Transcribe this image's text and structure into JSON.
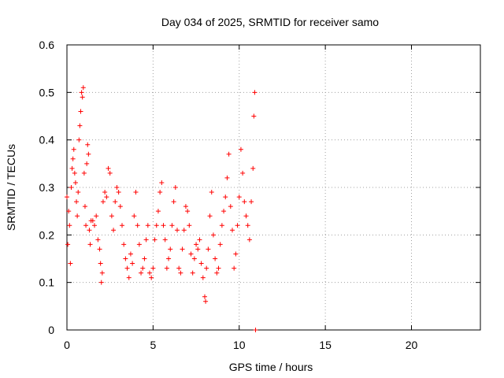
{
  "chart_data": {
    "type": "scatter",
    "title": "Day 034 of 2025, SRMTID for receiver samo",
    "xlabel": "GPS time / hours",
    "ylabel": "SRMTID / TECUs",
    "xlim": [
      0,
      24
    ],
    "ylim": [
      0,
      0.6
    ],
    "xticks": [
      0,
      5,
      10,
      15,
      20
    ],
    "yticks": [
      0,
      0.1,
      0.2,
      0.3,
      0.4,
      0.5,
      0.6
    ],
    "grid": true,
    "marker": "+",
    "series": [
      {
        "name": "SRMTID",
        "color": "#ff0000",
        "points": [
          [
            0.0,
            0.28
          ],
          [
            0.05,
            0.18
          ],
          [
            0.1,
            0.25
          ],
          [
            0.15,
            0.22
          ],
          [
            0.2,
            0.14
          ],
          [
            0.25,
            0.3
          ],
          [
            0.3,
            0.34
          ],
          [
            0.35,
            0.36
          ],
          [
            0.4,
            0.38
          ],
          [
            0.45,
            0.33
          ],
          [
            0.5,
            0.31
          ],
          [
            0.55,
            0.27
          ],
          [
            0.6,
            0.24
          ],
          [
            0.65,
            0.29
          ],
          [
            0.7,
            0.4
          ],
          [
            0.75,
            0.43
          ],
          [
            0.8,
            0.46
          ],
          [
            0.85,
            0.5
          ],
          [
            0.9,
            0.49
          ],
          [
            0.95,
            0.51
          ],
          [
            1.0,
            0.33
          ],
          [
            1.05,
            0.26
          ],
          [
            1.1,
            0.22
          ],
          [
            1.15,
            0.35
          ],
          [
            1.2,
            0.39
          ],
          [
            1.25,
            0.37
          ],
          [
            1.3,
            0.21
          ],
          [
            1.35,
            0.18
          ],
          [
            1.4,
            0.23
          ],
          [
            1.5,
            0.23
          ],
          [
            1.6,
            0.22
          ],
          [
            1.7,
            0.24
          ],
          [
            1.8,
            0.19
          ],
          [
            1.9,
            0.17
          ],
          [
            1.95,
            0.14
          ],
          [
            2.0,
            0.1
          ],
          [
            2.05,
            0.12
          ],
          [
            2.1,
            0.27
          ],
          [
            2.2,
            0.29
          ],
          [
            2.3,
            0.28
          ],
          [
            2.4,
            0.34
          ],
          [
            2.5,
            0.33
          ],
          [
            2.6,
            0.24
          ],
          [
            2.7,
            0.21
          ],
          [
            2.8,
            0.27
          ],
          [
            2.9,
            0.3
          ],
          [
            3.0,
            0.29
          ],
          [
            3.1,
            0.26
          ],
          [
            3.2,
            0.22
          ],
          [
            3.3,
            0.18
          ],
          [
            3.4,
            0.15
          ],
          [
            3.5,
            0.13
          ],
          [
            3.6,
            0.11
          ],
          [
            3.7,
            0.16
          ],
          [
            3.8,
            0.14
          ],
          [
            3.9,
            0.24
          ],
          [
            4.0,
            0.29
          ],
          [
            4.1,
            0.22
          ],
          [
            4.2,
            0.18
          ],
          [
            4.3,
            0.12
          ],
          [
            4.4,
            0.13
          ],
          [
            4.5,
            0.15
          ],
          [
            4.6,
            0.19
          ],
          [
            4.7,
            0.22
          ],
          [
            4.8,
            0.12
          ],
          [
            4.9,
            0.11
          ],
          [
            5.0,
            0.13
          ],
          [
            5.1,
            0.19
          ],
          [
            5.2,
            0.22
          ],
          [
            5.3,
            0.25
          ],
          [
            5.4,
            0.29
          ],
          [
            5.5,
            0.31
          ],
          [
            5.6,
            0.22
          ],
          [
            5.7,
            0.19
          ],
          [
            5.8,
            0.13
          ],
          [
            5.9,
            0.15
          ],
          [
            6.0,
            0.17
          ],
          [
            6.1,
            0.22
          ],
          [
            6.2,
            0.27
          ],
          [
            6.3,
            0.3
          ],
          [
            6.4,
            0.21
          ],
          [
            6.5,
            0.13
          ],
          [
            6.6,
            0.12
          ],
          [
            6.7,
            0.17
          ],
          [
            6.8,
            0.21
          ],
          [
            6.9,
            0.26
          ],
          [
            7.0,
            0.25
          ],
          [
            7.1,
            0.22
          ],
          [
            7.2,
            0.16
          ],
          [
            7.3,
            0.12
          ],
          [
            7.4,
            0.15
          ],
          [
            7.5,
            0.18
          ],
          [
            7.6,
            0.17
          ],
          [
            7.7,
            0.19
          ],
          [
            7.8,
            0.14
          ],
          [
            7.9,
            0.11
          ],
          [
            8.0,
            0.07
          ],
          [
            8.05,
            0.06
          ],
          [
            8.1,
            0.13
          ],
          [
            8.2,
            0.17
          ],
          [
            8.3,
            0.24
          ],
          [
            8.4,
            0.29
          ],
          [
            8.5,
            0.2
          ],
          [
            8.6,
            0.15
          ],
          [
            8.7,
            0.12
          ],
          [
            8.8,
            0.13
          ],
          [
            8.9,
            0.18
          ],
          [
            9.0,
            0.22
          ],
          [
            9.1,
            0.25
          ],
          [
            9.2,
            0.28
          ],
          [
            9.3,
            0.32
          ],
          [
            9.4,
            0.37
          ],
          [
            9.5,
            0.26
          ],
          [
            9.6,
            0.21
          ],
          [
            9.7,
            0.13
          ],
          [
            9.8,
            0.16
          ],
          [
            9.9,
            0.22
          ],
          [
            10.0,
            0.28
          ],
          [
            10.1,
            0.38
          ],
          [
            10.2,
            0.33
          ],
          [
            10.3,
            0.27
          ],
          [
            10.4,
            0.24
          ],
          [
            10.5,
            0.22
          ],
          [
            10.6,
            0.19
          ],
          [
            10.7,
            0.27
          ],
          [
            10.8,
            0.34
          ],
          [
            10.85,
            0.45
          ],
          [
            10.9,
            0.5
          ],
          [
            10.95,
            0.0
          ]
        ]
      }
    ]
  }
}
